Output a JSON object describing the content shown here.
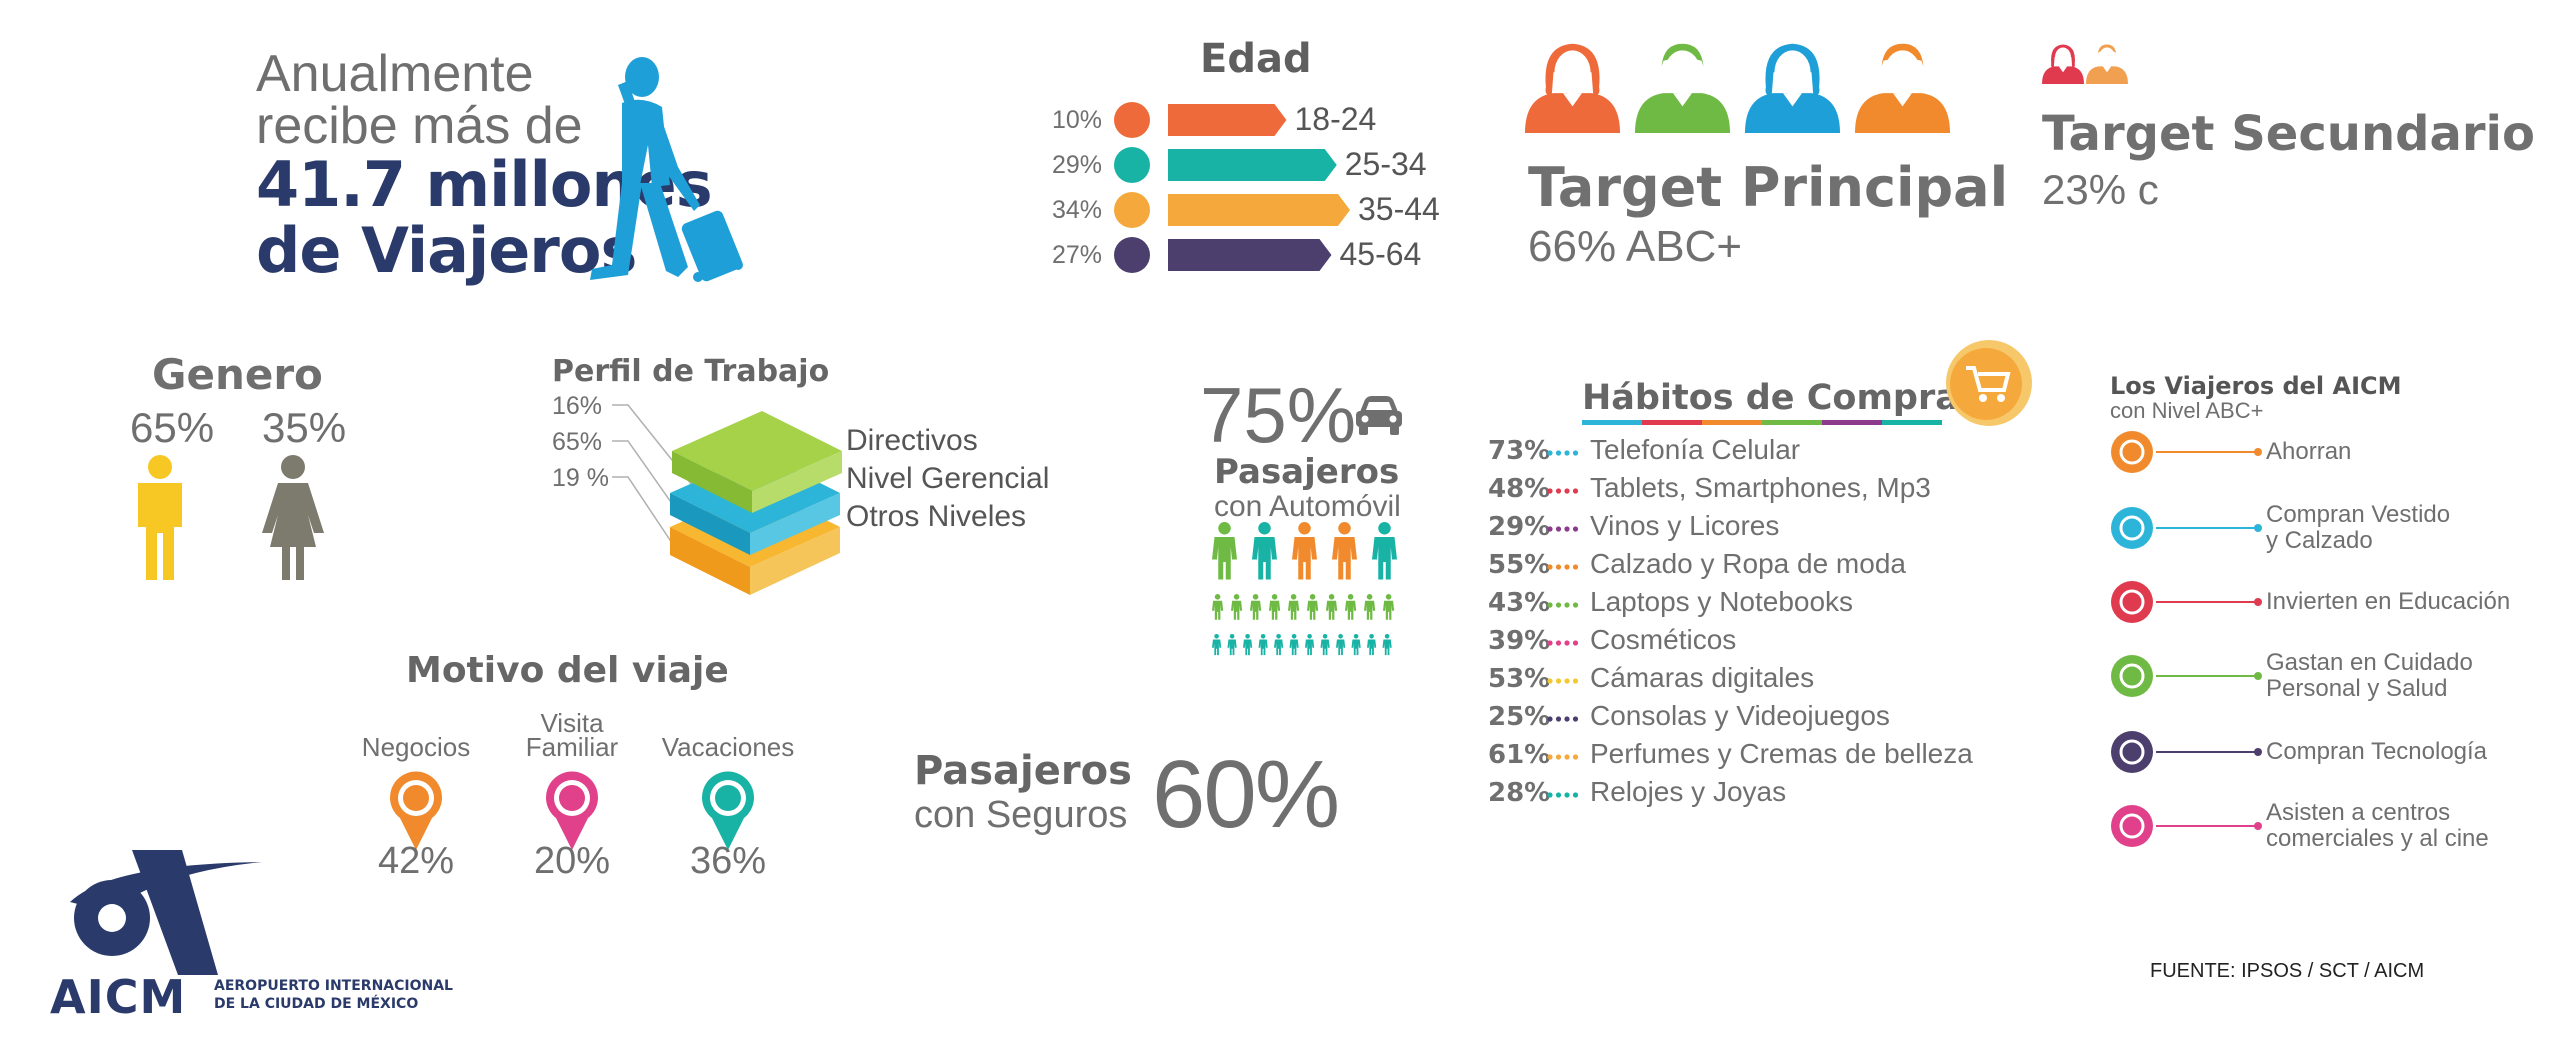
{
  "hero": {
    "line1": "Anualmente",
    "line2": "recibe más de",
    "line3": "41.7 millones",
    "line4": "de Viajeros"
  },
  "edad": {
    "title": "Edad",
    "items": [
      {
        "pct": "10%",
        "range": "18-24",
        "color": "#ef6a3a",
        "value": 10
      },
      {
        "pct": "29%",
        "range": "25-34",
        "color": "#19b3a6",
        "value": 29
      },
      {
        "pct": "34%",
        "range": "35-44",
        "color": "#f5a93c",
        "value": 34
      },
      {
        "pct": "27%",
        "range": "45-64",
        "color": "#4c3f6e",
        "value": 27
      }
    ]
  },
  "target_principal": {
    "title": "Target Principal",
    "value": "66% ABC+",
    "icon_colors": [
      "#ef6a3a",
      "#6fba44",
      "#1e9fd8",
      "#f08a2c"
    ]
  },
  "target_secundario": {
    "title": "Target Secundario",
    "value": "23% c",
    "icon_colors": [
      "#e03a4e",
      "#f0a050"
    ]
  },
  "genero": {
    "title": "Genero",
    "male_pct": "65%",
    "female_pct": "35%",
    "male_color": "#f7c823",
    "female_color": "#7d7a6e"
  },
  "perfil": {
    "title": "Perfil de Trabajo",
    "items": [
      {
        "pct": "16%",
        "label": "Directivos",
        "color": "#9ccc3c"
      },
      {
        "pct": "65%",
        "label": "Nivel Gerencial",
        "color": "#2cb5d8"
      },
      {
        "pct": "19 %",
        "label": "Otros Niveles",
        "color": "#f7b731"
      }
    ]
  },
  "automovil": {
    "pct": "75%",
    "line1": "Pasajeros",
    "line2": "con Automóvil",
    "people_colors": [
      "#6fba44",
      "#19b3a6",
      "#f08a2c",
      "#f08a2c",
      "#19b3a6"
    ]
  },
  "motivo": {
    "title": "Motivo del viaje",
    "items": [
      {
        "label": [
          "Negocios"
        ],
        "pct": "42%",
        "color": "#f08a2c"
      },
      {
        "label": [
          "Visita",
          "Familiar"
        ],
        "pct": "20%",
        "color": "#e0418a"
      },
      {
        "label": [
          "Vacaciones"
        ],
        "pct": "36%",
        "color": "#19b3a6"
      }
    ]
  },
  "seguros": {
    "line1": "Pasajeros",
    "line2": "con Seguros",
    "pct": "60%"
  },
  "habitos": {
    "title": "Hábitos de Compra",
    "items": [
      {
        "pct": "73%",
        "label": "Telefonía Celular",
        "color": "#2cb5d8"
      },
      {
        "pct": "48%",
        "label": "Tablets, Smartphones, Mp3",
        "color": "#e03a4e"
      },
      {
        "pct": "29%",
        "label": "Vinos y Licores",
        "color": "#8c3a8c"
      },
      {
        "pct": "55%",
        "label": "Calzado y Ropa de moda",
        "color": "#f08a2c"
      },
      {
        "pct": "43%",
        "label": "Laptops y Notebooks",
        "color": "#6fba44"
      },
      {
        "pct": "39%",
        "label": "Cosméticos",
        "color": "#e0418a"
      },
      {
        "pct": "53%",
        "label": "Cámaras digitales",
        "color": "#f5c830"
      },
      {
        "pct": "25%",
        "label": "Consolas y Videojuegos",
        "color": "#4c3f6e"
      },
      {
        "pct": "61%",
        "label": "Perfumes y Cremas de belleza",
        "color": "#f5a93c"
      },
      {
        "pct": "28%",
        "label": "Relojes y Joyas",
        "color": "#19b3a6"
      }
    ]
  },
  "abc": {
    "title": "Los Viajeros del AICM",
    "subtitle": "con Nivel ABC+",
    "items": [
      {
        "label": [
          "Ahorran"
        ],
        "color": "#f08a2c",
        "icon": "piggy-bank-icon"
      },
      {
        "label": [
          "Compran Vestido",
          "y Calzado"
        ],
        "color": "#2cb5d8",
        "icon": "shopping-bag-icon"
      },
      {
        "label": [
          "Invierten en Educación"
        ],
        "color": "#e03a4e",
        "icon": "education-icon"
      },
      {
        "label": [
          "Gastan en Cuidado",
          "Personal y Salud"
        ],
        "color": "#6fba44",
        "icon": "health-icon"
      },
      {
        "label": [
          "Compran Tecnología"
        ],
        "color": "#4c3f6e",
        "icon": "tablet-icon"
      },
      {
        "label": [
          "Asisten a centros",
          "comerciales y al cine"
        ],
        "color": "#e0418a",
        "icon": "people-icon"
      }
    ]
  },
  "logo": {
    "name": "AICM",
    "line1": "AEROPUERTO INTERNACIONAL",
    "line2": "DE LA CIUDAD DE MÉXICO"
  },
  "fuente": "FUENTE: IPSOS / SCT / AICM"
}
